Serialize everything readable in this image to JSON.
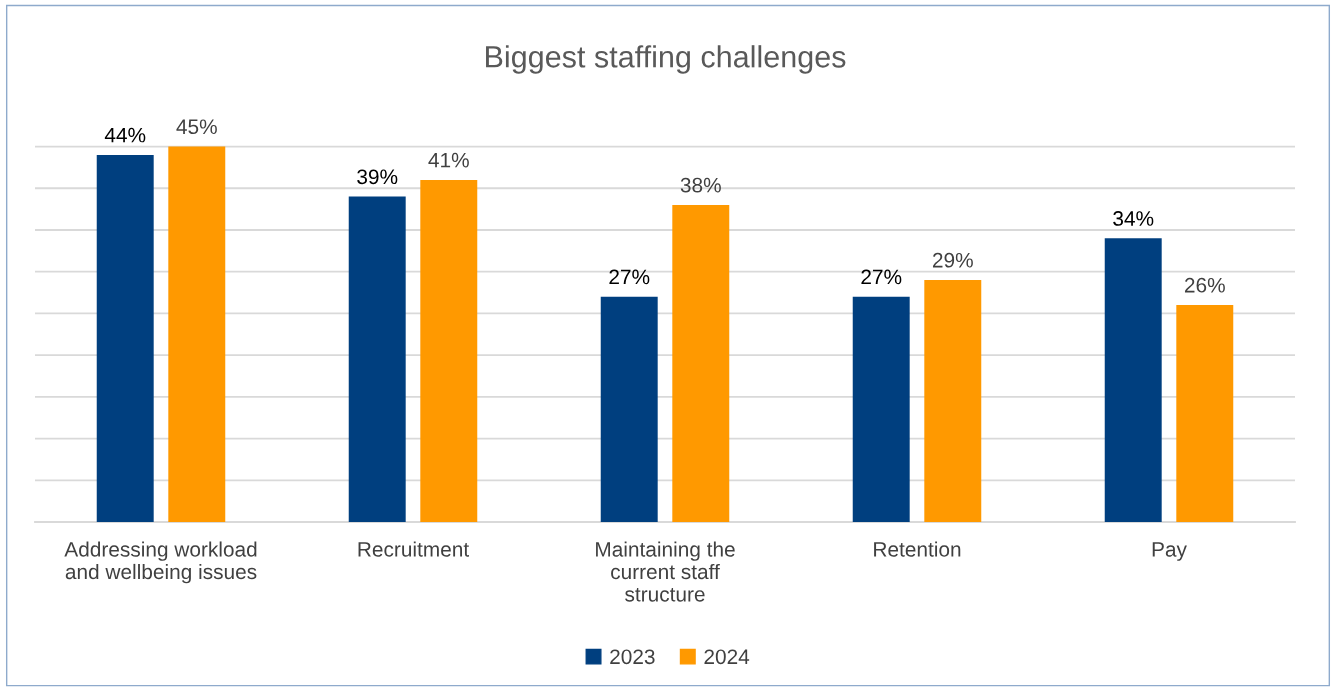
{
  "chart_data": {
    "type": "bar",
    "title": "Biggest staffing challenges",
    "categories": [
      "Addressing workload\nand wellbeing issues",
      "Recruitment",
      "Maintaining the\ncurrent staff\nstructure",
      "Retention",
      "Pay"
    ],
    "series": [
      {
        "name": "2023",
        "color": "#003f7f",
        "values": [
          44,
          39,
          27,
          27,
          34
        ],
        "value_labels": [
          "44%",
          "39%",
          "27%",
          "27%",
          "34%"
        ]
      },
      {
        "name": "2024",
        "color": "#ff9900",
        "values": [
          45,
          41,
          38,
          29,
          26
        ],
        "value_labels": [
          "45%",
          "41%",
          "38%",
          "29%",
          "26%"
        ]
      }
    ],
    "grid": "y",
    "legend": "bottom",
    "tick_labels": "x"
  }
}
